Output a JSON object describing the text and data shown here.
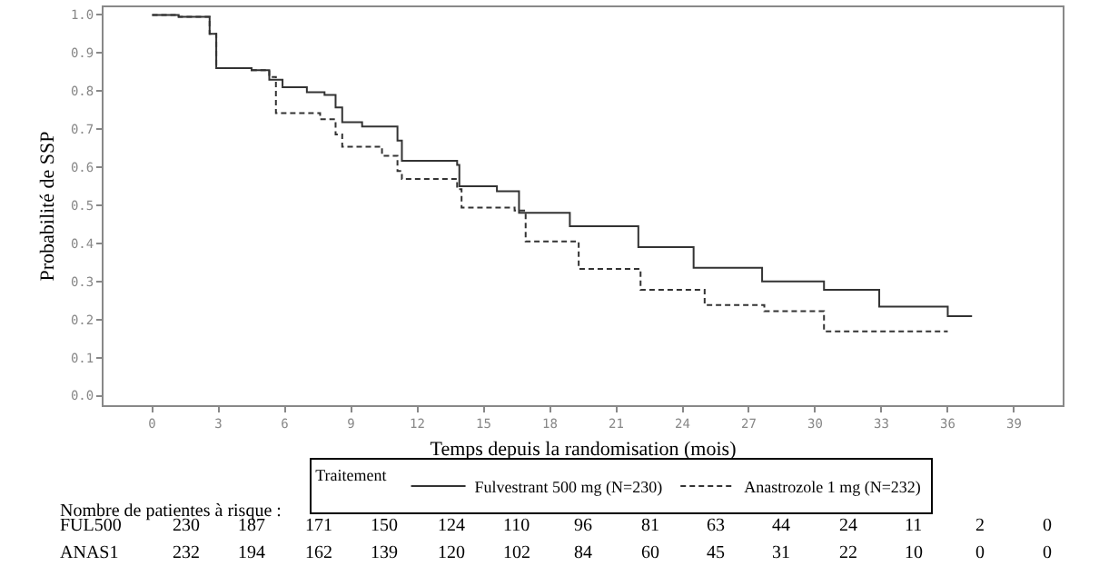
{
  "chart_data": {
    "type": "step",
    "xlabel": "Temps depuis la randomisation (mois)",
    "ylabel": "Probabilité de SSP",
    "legend_title": "Traitement",
    "legend": "bottom",
    "grid": false,
    "marker": "none",
    "xlim": [
      -2.2,
      41.2
    ],
    "xticks": [
      0,
      3,
      6,
      9,
      12,
      15,
      18,
      21,
      24,
      27,
      30,
      33,
      36,
      39
    ],
    "ylim": [
      -0.025,
      1.02
    ],
    "yticks": [
      {
        "value": 0,
        "label": "0.0"
      },
      {
        "value": 0.1,
        "label": "0.1"
      },
      {
        "value": 0.2,
        "label": "0.2"
      },
      {
        "value": 0.3,
        "label": "0.3"
      },
      {
        "value": 0.4,
        "label": "0.4"
      },
      {
        "value": 0.5,
        "label": "0.5"
      },
      {
        "value": 0.6,
        "label": "0.6"
      },
      {
        "value": 0.7,
        "label": "0.7"
      },
      {
        "value": 0.8,
        "label": "0.8"
      },
      {
        "value": 0.9,
        "label": "0.9"
      },
      {
        "value": 1,
        "label": "1.0"
      }
    ],
    "series": [
      {
        "name": "Fulvestrant 500 mg (N=230)",
        "color": "#333333",
        "line_style": "solid",
        "x": [
          0,
          1.2,
          2.6,
          2.9,
          4.5,
          5.3,
          5.9,
          7.0,
          7.8,
          8.3,
          8.6,
          9.5,
          11.1,
          11.3,
          13.8,
          13.9,
          15.6,
          16.6,
          18.9,
          22.0,
          24.5,
          27.6,
          30.4,
          32.9,
          36.0,
          37.1
        ],
        "values": [
          1,
          0.995,
          0.95,
          0.86,
          0.855,
          0.83,
          0.81,
          0.797,
          0.79,
          0.757,
          0.718,
          0.707,
          0.67,
          0.617,
          0.606,
          0.55,
          0.537,
          0.48,
          0.445,
          0.39,
          0.336,
          0.3,
          0.278,
          0.234,
          0.209,
          0.209
        ]
      },
      {
        "name": "Anastrozole 1 mg (N=232)",
        "color": "#333333",
        "line_style": "dashed",
        "x": [
          0,
          1.2,
          2.6,
          2.9,
          4.5,
          5.3,
          5.6,
          7.6,
          8.3,
          8.6,
          10.4,
          11.1,
          11.3,
          13.8,
          14.0,
          16.4,
          16.9,
          19.3,
          22.1,
          25.0,
          27.7,
          30.4,
          36.0
        ],
        "values": [
          1,
          0.995,
          0.95,
          0.86,
          0.855,
          0.837,
          0.742,
          0.726,
          0.686,
          0.654,
          0.63,
          0.59,
          0.569,
          0.542,
          0.494,
          0.486,
          0.405,
          0.333,
          0.278,
          0.238,
          0.222,
          0.169,
          0.169
        ]
      }
    ],
    "annotations": [
      "Nombre de patientes à risque :",
      "FUL500",
      "230",
      "187",
      "171",
      "150",
      "124",
      "110",
      "96",
      "81",
      "63",
      "44",
      "24",
      "11",
      "2",
      "0",
      "ANAS1",
      "232",
      "194",
      "162",
      "139",
      "120",
      "102",
      "84",
      "60",
      "45",
      "31",
      "22",
      "10",
      "0",
      "0"
    ]
  }
}
